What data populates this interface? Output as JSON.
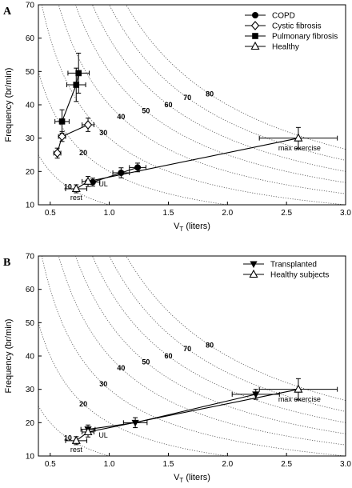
{
  "chart_data": [
    {
      "panel_label": "A",
      "type": "scatter",
      "xlabel": "V",
      "xlabel_sub": "T",
      "xlabel_unit": "(liters)",
      "ylabel": "Frequency (br/min)",
      "xlim": [
        0.4,
        3.0
      ],
      "ylim": [
        10,
        70
      ],
      "xticks": [
        "0.5",
        "1.0",
        "1.5",
        "2.0",
        "2.5",
        "3.0"
      ],
      "yticks": [
        "10",
        "20",
        "30",
        "40",
        "50",
        "60",
        "70"
      ],
      "isopleths": [
        {
          "ve": 10,
          "label": "10"
        },
        {
          "ve": 20,
          "label": "20"
        },
        {
          "ve": 30,
          "label": "30"
        },
        {
          "ve": 40,
          "label": "40"
        },
        {
          "ve": 50,
          "label": "50"
        },
        {
          "ve": 60,
          "label": "60"
        },
        {
          "ve": 70,
          "label": "70"
        },
        {
          "ve": 80,
          "label": "80"
        }
      ],
      "legend_position": "top-right",
      "series": [
        {
          "name": "COPD",
          "marker": "circle-filled",
          "points": [
            {
              "x": 0.86,
              "y": 16.8,
              "xerr": 0.06,
              "yerr": 1.2
            },
            {
              "x": 1.1,
              "y": 19.6,
              "xerr": 0.07,
              "yerr": 1.5
            },
            {
              "x": 1.24,
              "y": 21.2,
              "xerr": 0.07,
              "yerr": 1.3
            }
          ]
        },
        {
          "name": "Cystic fibrosis",
          "marker": "diamond-open",
          "points": [
            {
              "x": 0.56,
              "y": 25.5,
              "xerr": 0.03,
              "yerr": 1.5
            },
            {
              "x": 0.6,
              "y": 30.5,
              "xerr": 0.03,
              "yerr": 1.5
            },
            {
              "x": 0.82,
              "y": 34.0,
              "xerr": 0.05,
              "yerr": 2.0
            }
          ]
        },
        {
          "name": "Pulmonary fibrosis",
          "marker": "square-filled",
          "points": [
            {
              "x": 0.6,
              "y": 35.0,
              "xerr": 0.06,
              "yerr": 3.5
            },
            {
              "x": 0.72,
              "y": 46.0,
              "xerr": 0.08,
              "yerr": 5.0
            },
            {
              "x": 0.74,
              "y": 49.5,
              "xerr": 0.09,
              "yerr": 6.0
            }
          ]
        },
        {
          "name": "Healthy",
          "marker": "triangle-open",
          "points": [
            {
              "x": 0.72,
              "y": 14.8,
              "xerr": 0.09,
              "yerr": 1.2
            },
            {
              "x": 0.82,
              "y": 17.0,
              "xerr": 0.05,
              "yerr": 1.5
            },
            {
              "x": 2.6,
              "y": 30.0,
              "xerr": 0.33,
              "yerr": 3.2
            }
          ]
        }
      ],
      "annotations": [
        {
          "text": "rest",
          "x": 0.67,
          "y": 11.5
        },
        {
          "text": "UL",
          "x": 0.91,
          "y": 15.5
        },
        {
          "text": "max exercise",
          "x": 2.43,
          "y": 26.3
        }
      ]
    },
    {
      "panel_label": "B",
      "type": "scatter",
      "xlabel": "V",
      "xlabel_sub": "T",
      "xlabel_unit": "(liters)",
      "ylabel": "Frequency (br/min)",
      "xlim": [
        0.4,
        3.0
      ],
      "ylim": [
        10,
        70
      ],
      "xticks": [
        "0.5",
        "1.0",
        "1.5",
        "2.0",
        "2.5",
        "3.0"
      ],
      "yticks": [
        "10",
        "20",
        "30",
        "40",
        "50",
        "60",
        "70"
      ],
      "isopleths": [
        {
          "ve": 10,
          "label": "10"
        },
        {
          "ve": 20,
          "label": "20"
        },
        {
          "ve": 30,
          "label": "30"
        },
        {
          "ve": 40,
          "label": "40"
        },
        {
          "ve": 50,
          "label": "50"
        },
        {
          "ve": 60,
          "label": "60"
        },
        {
          "ve": 70,
          "label": "70"
        },
        {
          "ve": 80,
          "label": "80"
        }
      ],
      "legend_position": "top-right",
      "series": [
        {
          "name": "Transplanted",
          "marker": "triangle-down-filled",
          "points": [
            {
              "x": 0.82,
              "y": 18.0,
              "xerr": 0.06,
              "yerr": 1.3
            },
            {
              "x": 1.22,
              "y": 20.0,
              "xerr": 0.1,
              "yerr": 1.5
            },
            {
              "x": 2.24,
              "y": 28.5,
              "xerr": 0.2,
              "yerr": 1.5
            }
          ]
        },
        {
          "name": "Healthy subjects",
          "marker": "triangle-open",
          "points": [
            {
              "x": 0.72,
              "y": 14.6,
              "xerr": 0.09,
              "yerr": 1.2
            },
            {
              "x": 0.82,
              "y": 17.2,
              "xerr": 0.05,
              "yerr": 1.5
            },
            {
              "x": 2.6,
              "y": 30.0,
              "xerr": 0.33,
              "yerr": 3.2
            }
          ]
        }
      ],
      "annotations": [
        {
          "text": "rest",
          "x": 0.67,
          "y": 11.2
        },
        {
          "text": "UL",
          "x": 0.91,
          "y": 15.5
        },
        {
          "text": "max exercise",
          "x": 2.43,
          "y": 26.3
        }
      ]
    }
  ]
}
